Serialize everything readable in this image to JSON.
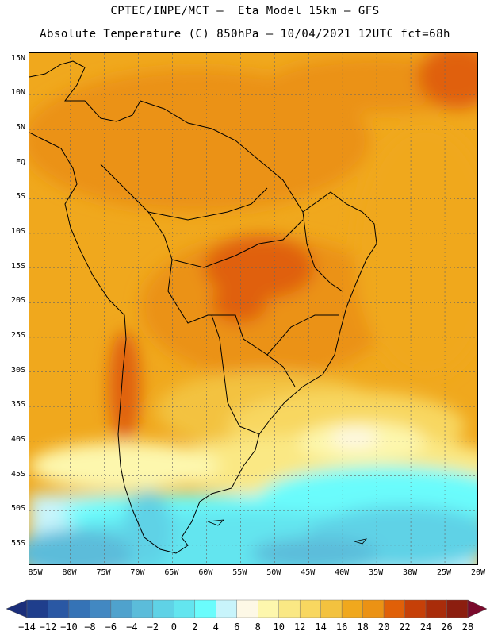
{
  "header": {
    "line1": "CPTEC/INPE/MCT –  Eta Model 15km – GFS",
    "line2": "Absolute Temperature (C) 850hPa – 10/04/2021 12UTC fct=68h"
  },
  "map": {
    "lat_labels": [
      "15N",
      "10N",
      "5N",
      "EQ",
      "5S",
      "10S",
      "15S",
      "20S",
      "25S",
      "30S",
      "35S",
      "40S",
      "45S",
      "50S",
      "55S"
    ],
    "lon_labels": [
      "85W",
      "80W",
      "75W",
      "70W",
      "65W",
      "60W",
      "55W",
      "50W",
      "45W",
      "40W",
      "35W",
      "30W",
      "25W",
      "20W"
    ],
    "extent": {
      "lon_min": -86,
      "lon_max": -20,
      "lat_min": -58,
      "lat_max": 16
    }
  },
  "colorbar": {
    "labels": [
      "-14",
      "-12",
      "-10",
      "-8",
      "-6",
      "-4",
      "-2",
      "0",
      "2",
      "4",
      "6",
      "8",
      "10",
      "12",
      "14",
      "16",
      "18",
      "20",
      "22",
      "24",
      "26",
      "28"
    ],
    "colors": [
      "#1f3e8c",
      "#2a58a4",
      "#3573b6",
      "#4288c2",
      "#4fa2cd",
      "#5bbcda",
      "#5fd2e6",
      "#63e5ef",
      "#6afcfc",
      "#c8f4fb",
      "#fdf8e6",
      "#fdf7ad",
      "#fae884",
      "#f8d760",
      "#f3c23f",
      "#f0a81d",
      "#eb9214",
      "#e06008",
      "#c64008",
      "#a92c0a",
      "#8c1e0f"
    ],
    "under_color": "#1b2e7a",
    "over_color": "#7a0a2c"
  }
}
